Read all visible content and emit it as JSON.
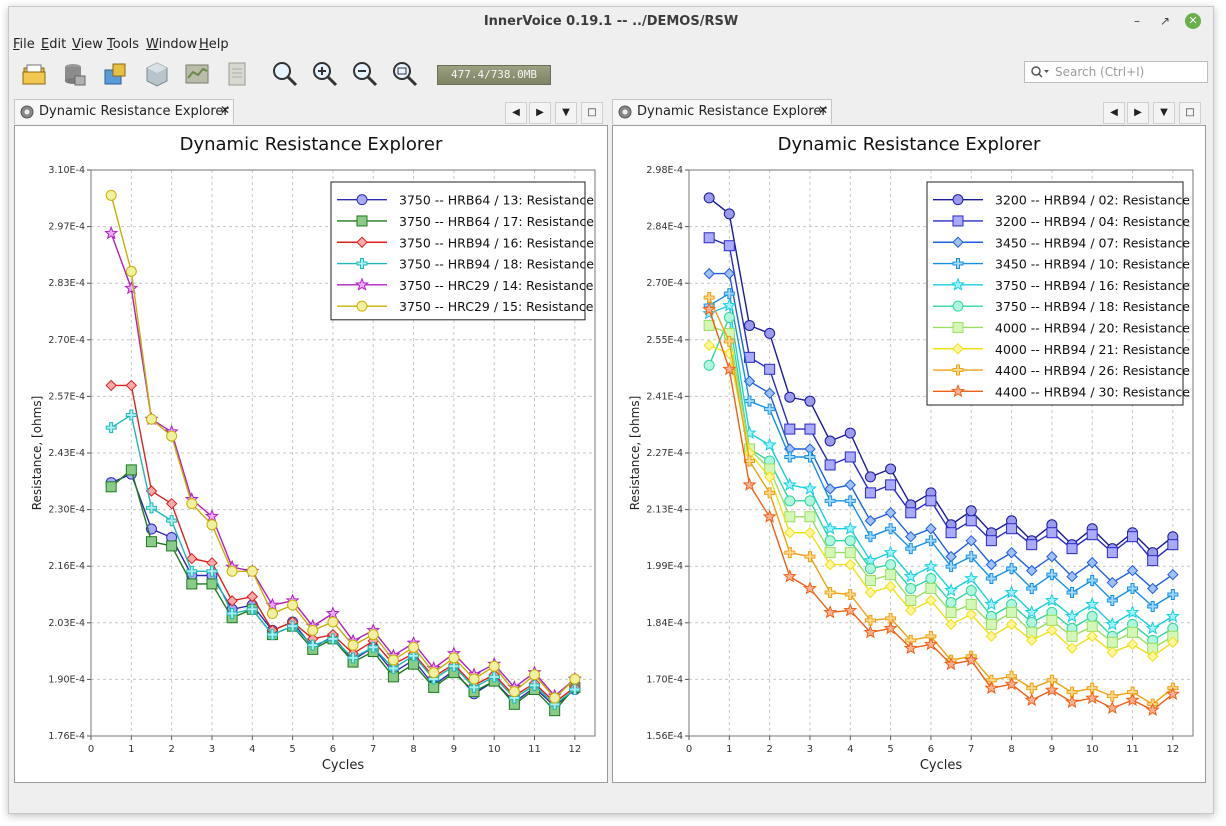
{
  "window": {
    "title": "InnerVoice 0.19.1 -- ../DEMOS/RSW"
  },
  "menu": [
    {
      "label": "File",
      "accel": "F"
    },
    {
      "label": "Edit",
      "accel": "E"
    },
    {
      "label": "View",
      "accel": "V"
    },
    {
      "label": "Tools",
      "accel": "T"
    },
    {
      "label": "Window",
      "accel": "W"
    },
    {
      "label": "Help",
      "accel": "H"
    }
  ],
  "toolbar": {
    "icons": [
      "open-folder-icon",
      "database-icon",
      "database-add-icon",
      "cube-icon",
      "chart-icon",
      "document-icon",
      "zoom-icon",
      "zoom-in-icon",
      "zoom-out-icon",
      "zoom-fit-icon"
    ],
    "memory": "477.4/738.0MB"
  },
  "search": {
    "placeholder": "Search (Ctrl+I)"
  },
  "tabs": [
    {
      "label": "Dynamic Resistance Explorer"
    },
    {
      "label": "Dynamic Resistance Explorer"
    }
  ],
  "chart_data": [
    {
      "type": "line",
      "title": "Dynamic Resistance Explorer",
      "xlabel": "Cycles",
      "ylabel": "Resistance, [ohms]",
      "xlim": [
        0,
        12.5
      ],
      "ylim": [
        0.000176,
        0.00031
      ],
      "xticks": [
        "0",
        "1",
        "2",
        "3",
        "4",
        "5",
        "6",
        "7",
        "8",
        "9",
        "10",
        "11",
        "12"
      ],
      "yticks": [
        "1.76E-4",
        "1.90E-4",
        "2.03E-4",
        "2.16E-4",
        "2.30E-4",
        "2.43E-4",
        "2.57E-4",
        "2.70E-4",
        "2.83E-4",
        "2.97E-4",
        "3.10E-4"
      ],
      "grid": true,
      "legend": "top-right",
      "x": [
        0.5,
        1,
        1.5,
        2,
        2.5,
        3,
        3.5,
        4,
        4.5,
        5,
        5.5,
        6,
        6.5,
        7,
        7.5,
        8,
        8.5,
        9,
        9.5,
        10,
        10.5,
        11,
        11.5,
        12
      ],
      "series": [
        {
          "name": "3750 -- HRB64 / 13: Resistance",
          "color": "#2b2bb0",
          "fill": "#aaaaff",
          "marker": "circle",
          "values": [
            0.000236,
            0.000238,
            0.000225,
            0.000223,
            0.000214,
            0.000214,
            0.000206,
            0.000207,
            0.000201,
            0.000203,
            0.000197,
            0.0001995,
            0.000194,
            0.000197,
            0.000191,
            0.000194,
            0.000188,
            0.0001915,
            0.000186,
            0.000189,
            0.000184,
            0.0001875,
            0.000183,
            0.000187
          ]
        },
        {
          "name": "3750 -- HRB64 / 17: Resistance",
          "color": "#1e7a1e",
          "fill": "#88cc88",
          "marker": "square",
          "values": [
            0.000235,
            0.000239,
            0.000222,
            0.000221,
            0.000212,
            0.000212,
            0.000204,
            0.000206,
            0.0002,
            0.000202,
            0.0001965,
            0.000199,
            0.0001935,
            0.000196,
            0.00019,
            0.000193,
            0.0001875,
            0.000191,
            0.0001865,
            0.000189,
            0.0001835,
            0.000187,
            0.000182,
            0.0001875
          ]
        },
        {
          "name": "3750 -- HRB94 / 16: Resistance",
          "color": "#e02020",
          "fill": "#ffaaaa",
          "marker": "diamond",
          "values": [
            0.000259,
            0.000259,
            0.000234,
            0.000231,
            0.000218,
            0.000217,
            0.000208,
            0.000209,
            0.000201,
            0.000203,
            0.000199,
            0.0002,
            0.0001955,
            0.0001985,
            0.000193,
            0.0001955,
            0.00019,
            0.000193,
            0.000188,
            0.0001905,
            0.0001855,
            0.0001885,
            0.000184,
            0.0001875
          ]
        },
        {
          "name": "3750 -- HRB94 / 18: Resistance",
          "color": "#20b8b8",
          "fill": "#aaf0f0",
          "marker": "plus",
          "values": [
            0.000249,
            0.000252,
            0.00023,
            0.000227,
            0.000215,
            0.000215,
            0.000205,
            0.000206,
            0.0002,
            0.000202,
            0.0001975,
            0.000199,
            0.0001945,
            0.000197,
            0.000192,
            0.000195,
            0.0001895,
            0.0001925,
            0.0001875,
            0.00019,
            0.000185,
            0.000188,
            0.0001835,
            0.000187
          ]
        },
        {
          "name": "3750 -- HRC29 / 14: Resistance",
          "color": "#b020c0",
          "fill": "#eeaaff",
          "marker": "star",
          "values": [
            0.000295,
            0.000282,
            0.000251,
            0.000248,
            0.000232,
            0.000228,
            0.000216,
            0.000215,
            0.000207,
            0.000208,
            0.000202,
            0.000205,
            0.0001985,
            0.000201,
            0.000195,
            0.000198,
            0.000192,
            0.0001955,
            0.0001905,
            0.000193,
            0.0001875,
            0.000191,
            0.0001855,
            0.0001895
          ]
        },
        {
          "name": "3750 -- HRC29 / 15: Resistance",
          "color": "#c8b000",
          "fill": "#f0f0a0",
          "marker": "circle",
          "values": [
            0.000304,
            0.000286,
            0.000251,
            0.000247,
            0.000231,
            0.000226,
            0.000215,
            0.000215,
            0.000205,
            0.000207,
            0.000201,
            0.000203,
            0.0001975,
            0.0002,
            0.000194,
            0.000197,
            0.000191,
            0.0001945,
            0.0001895,
            0.0001925,
            0.0001865,
            0.0001905,
            0.000185,
            0.0001895
          ]
        }
      ]
    },
    {
      "type": "line",
      "title": "Dynamic Resistance Explorer",
      "xlabel": "Cycles",
      "ylabel": "Resistance, [ohms]",
      "xlim": [
        0,
        12.5
      ],
      "ylim": [
        0.000156,
        0.000298
      ],
      "xticks": [
        "0",
        "1",
        "2",
        "3",
        "4",
        "5",
        "6",
        "7",
        "8",
        "9",
        "10",
        "11",
        "12"
      ],
      "yticks": [
        "1.56E-4",
        "1.70E-4",
        "1.84E-4",
        "1.99E-4",
        "2.13E-4",
        "2.27E-4",
        "2.41E-4",
        "2.55E-4",
        "2.70E-4",
        "2.84E-4",
        "2.98E-4"
      ],
      "grid": true,
      "legend": "top-right",
      "x": [
        0.5,
        1,
        1.5,
        2,
        2.5,
        3,
        3.5,
        4,
        4.5,
        5,
        5.5,
        6,
        6.5,
        7,
        7.5,
        8,
        8.5,
        9,
        9.5,
        10,
        10.5,
        11,
        11.5,
        12
      ],
      "series": [
        {
          "name": "3200 -- HRB94 / 02: Resistance",
          "color": "#1a1a9a",
          "fill": "#9a9aee",
          "marker": "circle",
          "values": [
            0.000291,
            0.000287,
            0.000259,
            0.000257,
            0.000241,
            0.00024,
            0.00023,
            0.000232,
            0.000221,
            0.000223,
            0.000214,
            0.000217,
            0.000209,
            0.0002125,
            0.000207,
            0.00021,
            0.000205,
            0.000209,
            0.000204,
            0.000208,
            0.000203,
            0.000207,
            0.000202,
            0.000206
          ]
        },
        {
          "name": "3200 -- HRB94 / 04: Resistance",
          "color": "#2a2ac8",
          "fill": "#aaaaff",
          "marker": "square",
          "values": [
            0.000281,
            0.000279,
            0.000251,
            0.000248,
            0.000233,
            0.000233,
            0.000224,
            0.000226,
            0.000217,
            0.000219,
            0.000212,
            0.000215,
            0.000207,
            0.00021,
            0.000205,
            0.000208,
            0.000204,
            0.000207,
            0.000203,
            0.0002065,
            0.000202,
            0.000206,
            0.0002,
            0.000204
          ]
        },
        {
          "name": "3450 -- HRB94 / 07: Resistance",
          "color": "#2060e0",
          "fill": "#a0c0ff",
          "marker": "diamond",
          "values": [
            0.000272,
            0.000272,
            0.000245,
            0.000242,
            0.000228,
            0.000228,
            0.000218,
            0.000219,
            0.00021,
            0.000212,
            0.000206,
            0.000208,
            0.000201,
            0.000205,
            0.000199,
            0.000202,
            0.0001975,
            0.000201,
            0.000196,
            0.0001995,
            0.0001945,
            0.0001975,
            0.000193,
            0.0001965
          ]
        },
        {
          "name": "3450 -- HRB94 / 10: Resistance",
          "color": "#1890e8",
          "fill": "#a0d8ff",
          "marker": "plus",
          "values": [
            0.000264,
            0.000267,
            0.00024,
            0.000238,
            0.000226,
            0.000226,
            0.000215,
            0.000215,
            0.000206,
            0.000208,
            0.000203,
            0.000205,
            0.0001985,
            0.000201,
            0.0001955,
            0.000198,
            0.000193,
            0.0001965,
            0.000192,
            0.000195,
            0.00019,
            0.000193,
            0.0001885,
            0.0001915
          ]
        },
        {
          "name": "3750 -- HRB94 / 16: Resistance",
          "color": "#18d0e0",
          "fill": "#a0f4ff",
          "marker": "star",
          "values": [
            0.000262,
            0.000264,
            0.000232,
            0.000229,
            0.000219,
            0.000218,
            0.000208,
            0.000208,
            0.0002,
            0.000202,
            0.000196,
            0.0001985,
            0.0001925,
            0.0001955,
            0.000189,
            0.000192,
            0.000187,
            0.00019,
            0.000186,
            0.000189,
            0.000184,
            0.000187,
            0.000183,
            0.000186
          ]
        },
        {
          "name": "3750 -- HRB94 / 18: Resistance",
          "color": "#30d8a0",
          "fill": "#b0f5dc",
          "marker": "circle",
          "values": [
            0.000249,
            0.000261,
            0.000228,
            0.000225,
            0.000215,
            0.000215,
            0.000205,
            0.000205,
            0.000198,
            0.000199,
            0.000193,
            0.0001955,
            0.0001895,
            0.0001925,
            0.000186,
            0.000189,
            0.0001845,
            0.000187,
            0.000183,
            0.000186,
            0.000181,
            0.000184,
            0.00018,
            0.000183
          ]
        },
        {
          "name": "4000 -- HRB94 / 20: Resistance",
          "color": "#9ae060",
          "fill": "#d4f7b8",
          "marker": "square",
          "values": [
            0.000259,
            0.000257,
            0.000228,
            0.000223,
            0.000211,
            0.000211,
            0.000202,
            0.000202,
            0.000195,
            0.0001965,
            0.00019,
            0.000193,
            0.000187,
            0.000189,
            0.000184,
            0.000187,
            0.000182,
            0.000185,
            0.000181,
            0.0001835,
            0.0001795,
            0.000182,
            0.000178,
            0.000181
          ]
        },
        {
          "name": "4000 -- HRB94 / 21: Resistance",
          "color": "#f0e018",
          "fill": "#fff79a",
          "marker": "diamond",
          "values": [
            0.000254,
            0.000252,
            0.000227,
            0.000221,
            0.000207,
            0.000207,
            0.000199,
            0.000199,
            0.000192,
            0.0001935,
            0.0001875,
            0.00019,
            0.000184,
            0.0001865,
            0.000181,
            0.000184,
            0.00018,
            0.0001825,
            0.000178,
            0.000181,
            0.000177,
            0.000179,
            0.000176,
            0.0001795
          ]
        },
        {
          "name": "4400 -- HRB94 / 26: Resistance",
          "color": "#f0a010",
          "fill": "#ffd890",
          "marker": "plus",
          "values": [
            0.000266,
            0.000255,
            0.000225,
            0.000217,
            0.000202,
            0.000201,
            0.000192,
            0.0001915,
            0.000185,
            0.0001855,
            0.00018,
            0.000181,
            0.000175,
            0.000176,
            0.00017,
            0.000171,
            0.000168,
            0.00017,
            0.000167,
            0.000168,
            0.000166,
            0.000167,
            0.000164,
            0.000168
          ]
        },
        {
          "name": "4400 -- HRB94 / 30: Resistance",
          "color": "#f06018",
          "fill": "#ffb090",
          "marker": "star",
          "values": [
            0.000263,
            0.000248,
            0.000219,
            0.000211,
            0.000196,
            0.000193,
            0.000187,
            0.0001875,
            0.000182,
            0.000183,
            0.000178,
            0.000179,
            0.000174,
            0.000175,
            0.000168,
            0.000169,
            0.000165,
            0.0001675,
            0.0001645,
            0.0001655,
            0.000163,
            0.000165,
            0.0001625,
            0.0001665
          ]
        }
      ]
    }
  ]
}
